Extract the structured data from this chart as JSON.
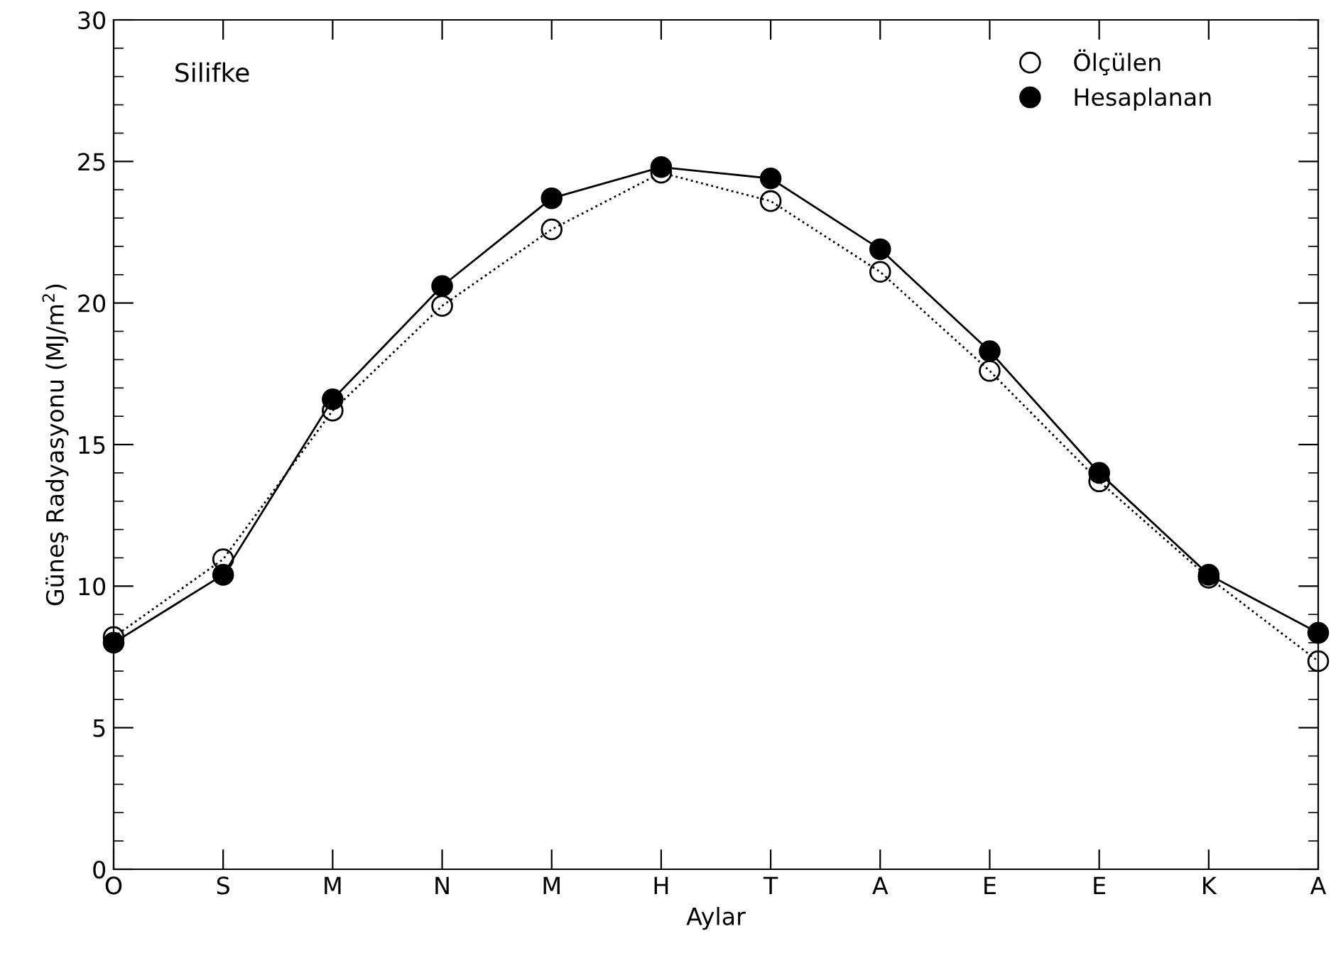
{
  "chart_data": {
    "type": "line",
    "xlabel": "Aylar",
    "ylabel": "Güneş Radyasyonu (MJ/m$^{2}$)",
    "annotations": [
      "Silifke"
    ],
    "categories": [
      "O",
      "S",
      "M",
      "N",
      "M",
      "H",
      "T",
      "A",
      "E",
      "E",
      "K",
      "A"
    ],
    "series": [
      {
        "name": "Ölçülen",
        "color": "#000000",
        "marker": "circle",
        "line_style": "dotted",
        "values": [
          8.2,
          10.95,
          16.2,
          19.9,
          22.6,
          24.6,
          23.6,
          21.1,
          17.6,
          13.7,
          10.3,
          7.35
        ]
      },
      {
        "name": "Hesaplanan",
        "color": "#000000",
        "marker": "circle",
        "line_style": "solid",
        "values": [
          8.0,
          10.4,
          16.6,
          20.6,
          23.7,
          24.8,
          24.4,
          21.9,
          18.3,
          14.0,
          10.4,
          8.35
        ]
      }
    ],
    "ylim": [
      0,
      30
    ],
    "yticks": [
      0,
      5,
      10,
      15,
      20,
      25,
      30
    ],
    "grid": false,
    "legend": "top right"
  }
}
